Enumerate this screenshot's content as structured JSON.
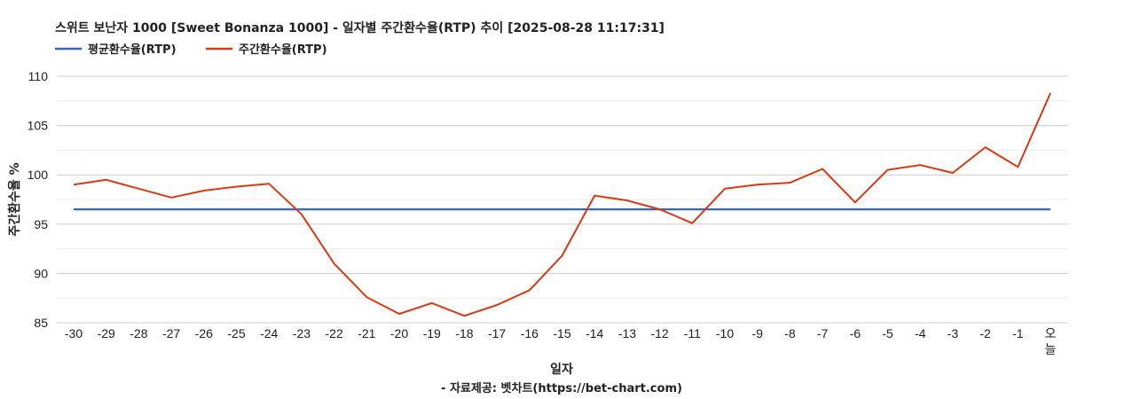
{
  "chart_data": {
    "type": "line",
    "title": "스위트 보난자 1000 [Sweet Bonanza 1000] - 일자별 주간환수율(RTP) 추이 [2025-08-28 11:17:31]",
    "xlabel": "일자",
    "ylabel": "주간환수율 %",
    "source": "- 자료제공: 벳차트(https://bet-chart.com)",
    "categories": [
      "-30",
      "-29",
      "-28",
      "-27",
      "-26",
      "-25",
      "-24",
      "-23",
      "-22",
      "-21",
      "-20",
      "-19",
      "-18",
      "-17",
      "-16",
      "-15",
      "-14",
      "-13",
      "-12",
      "-11",
      "-10",
      "-9",
      "-8",
      "-7",
      "-6",
      "-5",
      "-4",
      "-3",
      "-2",
      "-1",
      "오늘"
    ],
    "ylim": [
      85,
      110
    ],
    "yticks": [
      85,
      90,
      95,
      100,
      105,
      110
    ],
    "grid": true,
    "legend_position": "top-left",
    "series": [
      {
        "name": "평균환수율(RTP)",
        "color": "#3366cc",
        "values": [
          96.5,
          96.5,
          96.5,
          96.5,
          96.5,
          96.5,
          96.5,
          96.5,
          96.5,
          96.5,
          96.5,
          96.5,
          96.5,
          96.5,
          96.5,
          96.5,
          96.5,
          96.5,
          96.5,
          96.5,
          96.5,
          96.5,
          96.5,
          96.5,
          96.5,
          96.5,
          96.5,
          96.5,
          96.5,
          96.5,
          96.5
        ]
      },
      {
        "name": "주간환수율(RTP)",
        "color": "#dc3912",
        "values": [
          99.0,
          99.5,
          98.6,
          97.7,
          98.4,
          98.8,
          99.1,
          96.0,
          91.0,
          87.6,
          85.9,
          87.0,
          85.7,
          86.8,
          88.3,
          91.8,
          97.9,
          97.4,
          96.5,
          95.1,
          98.6,
          99.0,
          99.2,
          100.6,
          97.2,
          100.5,
          101.0,
          100.2,
          102.8,
          100.8,
          108.3
        ]
      }
    ]
  }
}
